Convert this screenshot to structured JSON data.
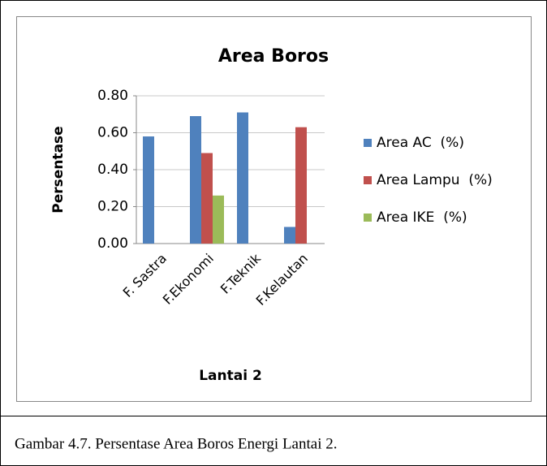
{
  "chart_data": {
    "type": "bar",
    "title": "Area Boros",
    "xlabel": "Lantai 2",
    "ylabel": "Persentase",
    "categories": [
      "F. Sastra",
      "F.Ekonomi",
      "F.Teknik",
      "F.Kelautan"
    ],
    "series": [
      {
        "name": "Area AC  (%)",
        "color": "#4f81bd",
        "values": [
          0.58,
          0.69,
          0.71,
          0.09
        ]
      },
      {
        "name": "Area Lampu  (%)",
        "color": "#c0504d",
        "values": [
          0,
          0.49,
          0,
          0.63
        ]
      },
      {
        "name": "Area IKE  (%)",
        "color": "#9bbb59",
        "values": [
          0,
          0.26,
          0,
          0
        ]
      }
    ],
    "ylim": [
      0,
      0.8
    ],
    "yticks": [
      {
        "value": 0,
        "label": "0.00"
      },
      {
        "value": 0.2,
        "label": "0.20"
      },
      {
        "value": 0.4,
        "label": "0.40"
      },
      {
        "value": 0.6,
        "label": "0.60"
      },
      {
        "value": 0.8,
        "label": "0.80"
      }
    ],
    "grid": true,
    "legend": "right"
  },
  "caption": "Gambar 4.7. Persentase Area Boros Energi Lantai 2."
}
